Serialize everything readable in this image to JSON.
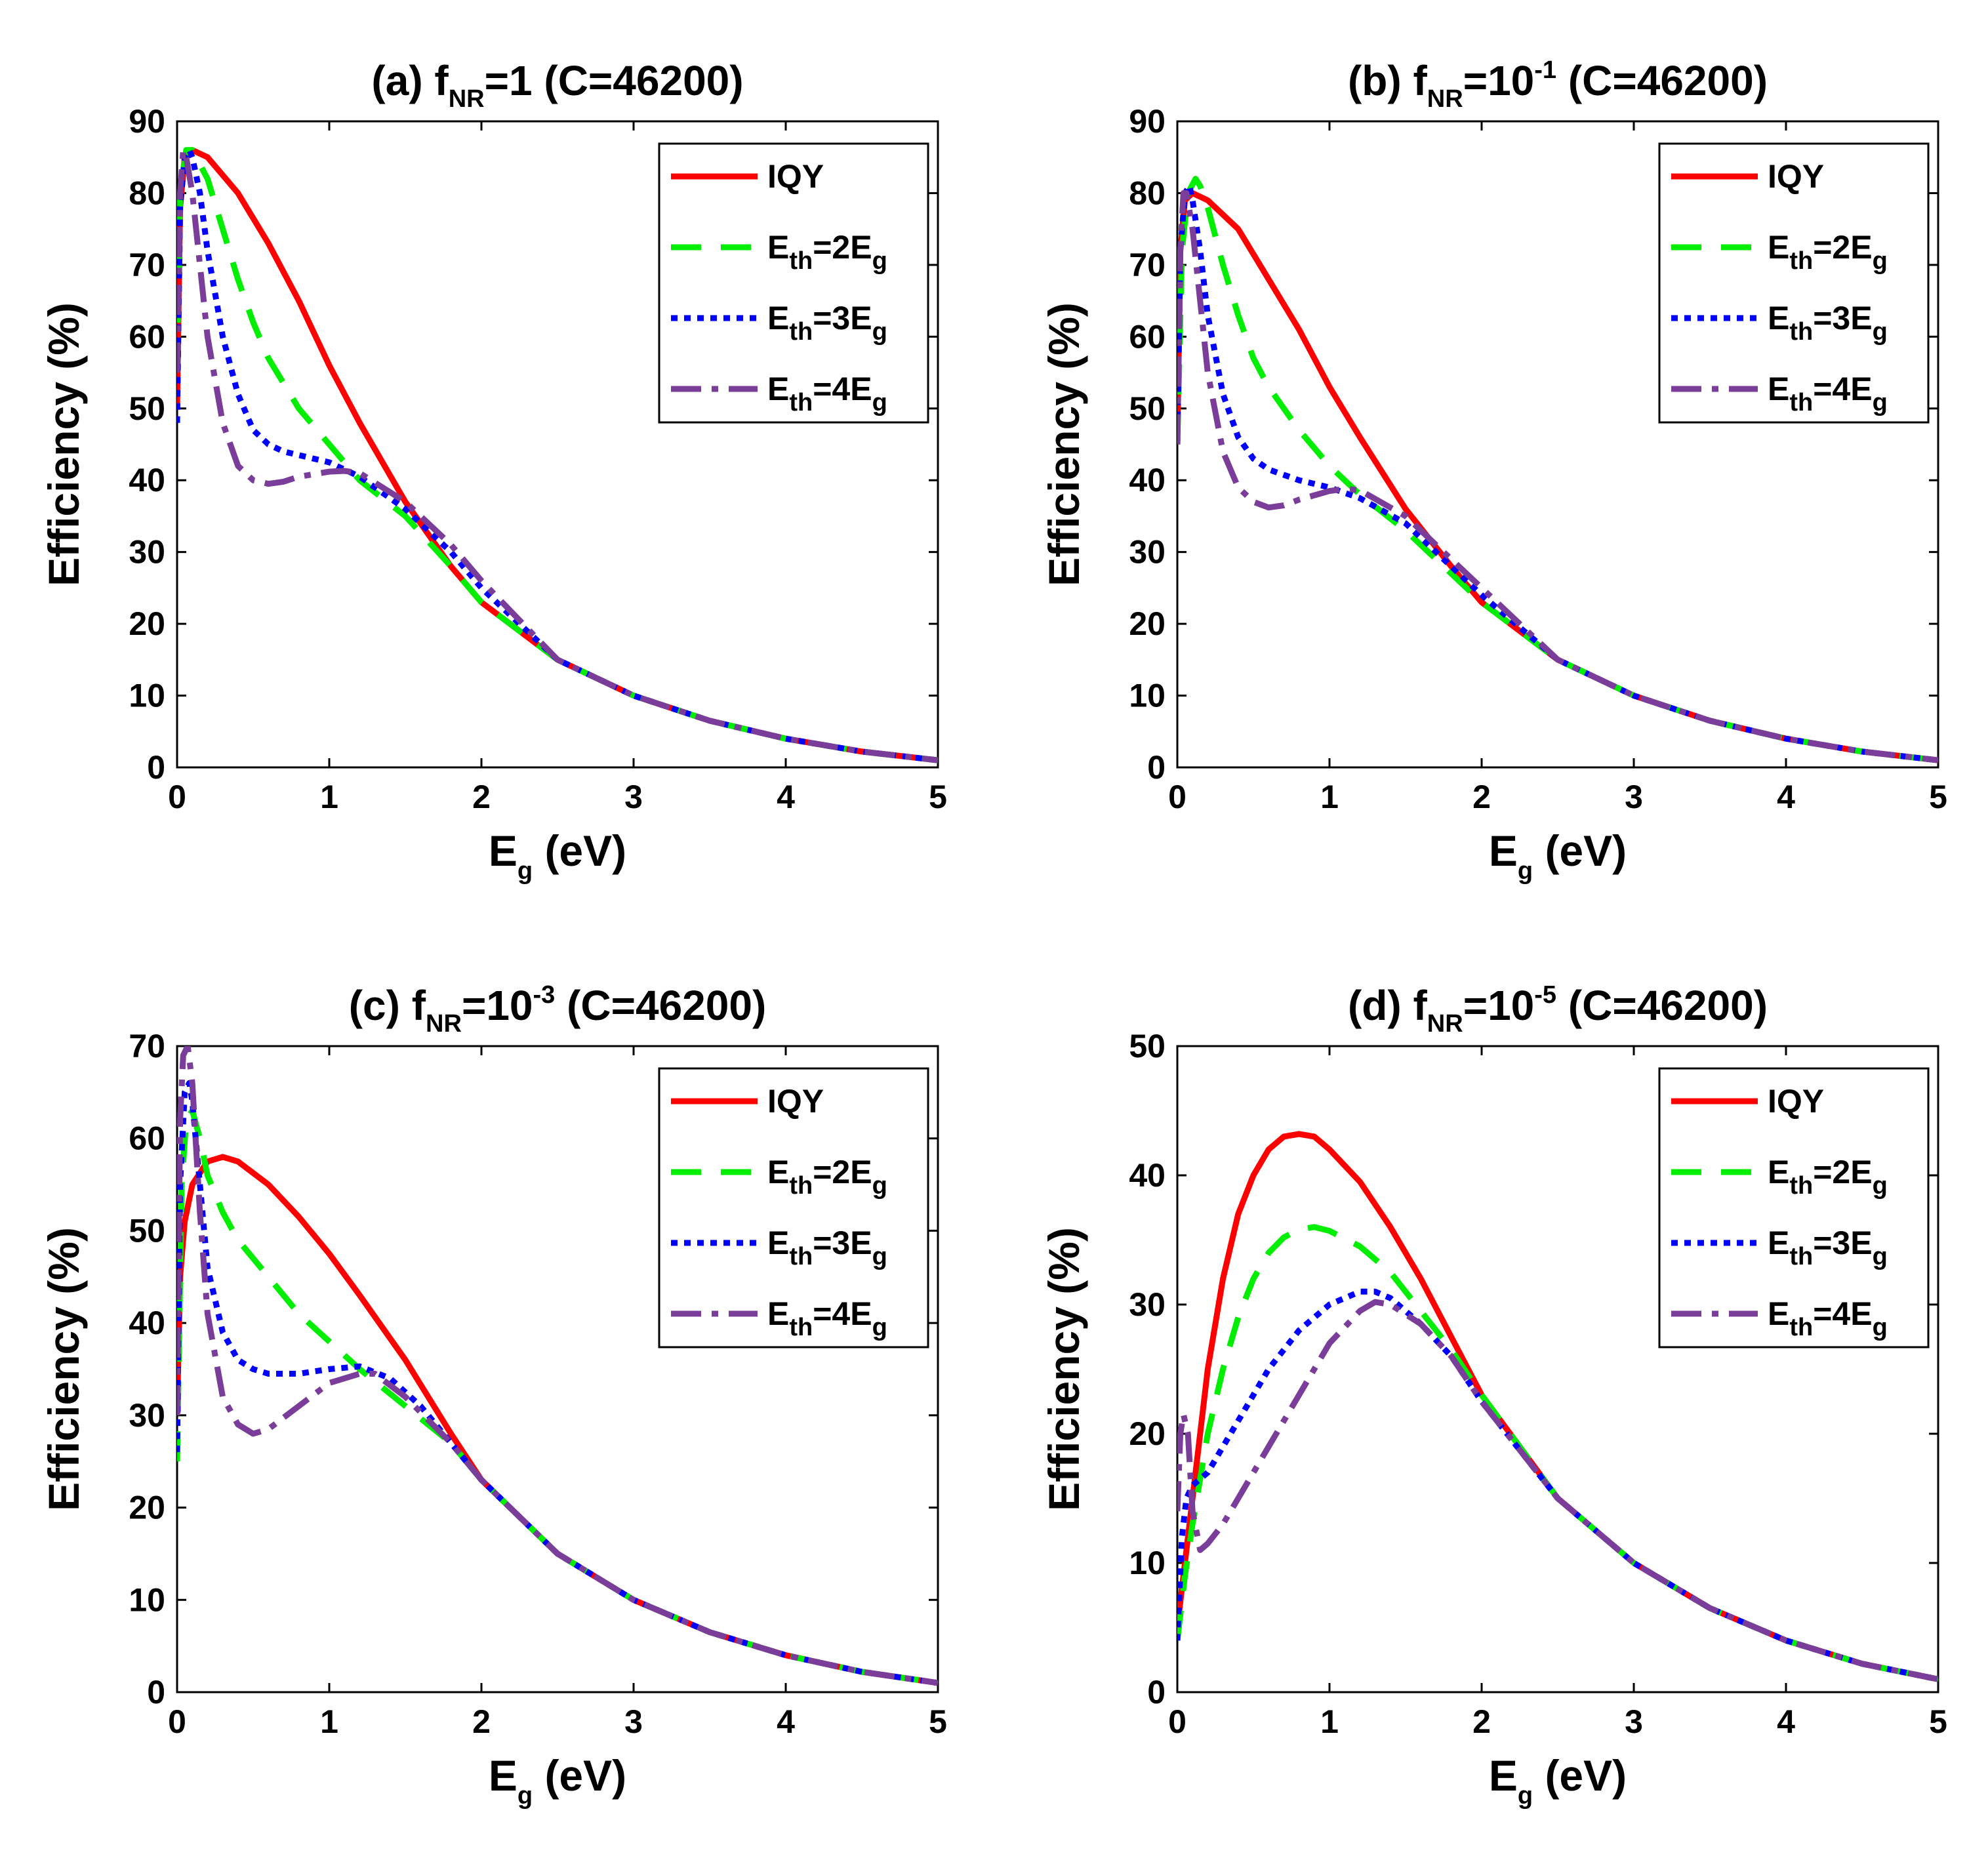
{
  "figure": {
    "colors": {
      "IQY": "#ff0000",
      "Eth2": "#00ee00",
      "Eth3": "#0000ff",
      "Eth4": "#7a3d9a"
    },
    "legend": [
      {
        "key": "IQY",
        "label": "IQY"
      },
      {
        "key": "Eth2",
        "label_main": "E",
        "label_sub": "th",
        "label_mid": "=2E",
        "label_sub2": "g"
      },
      {
        "key": "Eth3",
        "label_main": "E",
        "label_sub": "th",
        "label_mid": "=3E",
        "label_sub2": "g"
      },
      {
        "key": "Eth4",
        "label_main": "E",
        "label_sub": "th",
        "label_mid": "=4E",
        "label_sub2": "g"
      }
    ]
  },
  "chart_data": [
    {
      "type": "line",
      "panel": "a",
      "title_pre": "(a) f",
      "title_sub": "NR",
      "title_sup": "",
      "title_post": "=1 (C=46200)",
      "xlabel_main": "E",
      "xlabel_sub": "g",
      "xlabel_post": " (eV)",
      "ylabel": "Efficiency (%)",
      "xlim": [
        0,
        5
      ],
      "ylim": [
        0,
        90
      ],
      "xticks": [
        0,
        1,
        2,
        3,
        4,
        5
      ],
      "yticks": [
        0,
        10,
        20,
        30,
        40,
        50,
        60,
        70,
        80,
        90
      ],
      "series": [
        {
          "name": "IQY",
          "key": "IQY",
          "x": [
            0,
            0.02,
            0.05,
            0.1,
            0.2,
            0.4,
            0.6,
            0.8,
            1.0,
            1.2,
            1.5,
            1.8,
            2.0,
            2.5,
            3.0,
            3.5,
            4.0,
            4.5,
            5.0
          ],
          "y": [
            50,
            78,
            85,
            86,
            85,
            80,
            73,
            65,
            56,
            48,
            37,
            28,
            23,
            15,
            10,
            6.5,
            4,
            2.2,
            1
          ]
        },
        {
          "name": "E_th=2E_g",
          "key": "Eth2",
          "x": [
            0,
            0.02,
            0.06,
            0.1,
            0.15,
            0.2,
            0.3,
            0.4,
            0.5,
            0.6,
            0.8,
            1.0,
            1.2,
            1.5,
            1.8,
            2.0,
            2.5,
            3.0,
            3.5,
            4.0,
            4.5,
            5.0
          ],
          "y": [
            55,
            80,
            86,
            86,
            84,
            82,
            75,
            68,
            62,
            57,
            50,
            45,
            40,
            35,
            28,
            23,
            15,
            10,
            6.5,
            4,
            2.2,
            1
          ]
        },
        {
          "name": "E_th=3E_g",
          "key": "Eth3",
          "x": [
            0,
            0.02,
            0.05,
            0.08,
            0.1,
            0.15,
            0.2,
            0.3,
            0.4,
            0.5,
            0.6,
            0.7,
            0.8,
            1.0,
            1.2,
            1.5,
            1.8,
            2.0,
            2.5,
            3.0,
            3.5,
            4.0,
            4.5,
            5.0
          ],
          "y": [
            48,
            78,
            85,
            86,
            85,
            80,
            72,
            60,
            52,
            47,
            45,
            44,
            43.5,
            42.5,
            40.5,
            36,
            30,
            25,
            15,
            10,
            6.5,
            4,
            2.2,
            1
          ]
        },
        {
          "name": "E_th=4E_g",
          "key": "Eth4",
          "x": [
            0,
            0.02,
            0.04,
            0.06,
            0.1,
            0.15,
            0.2,
            0.3,
            0.4,
            0.5,
            0.6,
            0.7,
            0.8,
            1.0,
            1.1,
            1.2,
            1.5,
            1.8,
            2.0,
            2.5,
            3.0,
            3.5,
            4.0,
            4.5,
            5.0
          ],
          "y": [
            55,
            80,
            86,
            85,
            80,
            70,
            60,
            48,
            42,
            40,
            39.5,
            39.8,
            40.5,
            41.2,
            41.3,
            41,
            37,
            31,
            26,
            15,
            10,
            6.5,
            4,
            2.2,
            1
          ]
        }
      ]
    },
    {
      "type": "line",
      "panel": "b",
      "title_pre": "(b) f",
      "title_sub": "NR",
      "title_sup": "-1",
      "title_post": " (C=46200)",
      "title_mid": "=10",
      "xlabel_main": "E",
      "xlabel_sub": "g",
      "xlabel_post": " (eV)",
      "ylabel": "Efficiency (%)",
      "xlim": [
        0,
        5
      ],
      "ylim": [
        0,
        90
      ],
      "xticks": [
        0,
        1,
        2,
        3,
        4,
        5
      ],
      "yticks": [
        0,
        10,
        20,
        30,
        40,
        50,
        60,
        70,
        80,
        90
      ],
      "series": [
        {
          "name": "IQY",
          "key": "IQY",
          "x": [
            0,
            0.02,
            0.05,
            0.1,
            0.2,
            0.4,
            0.6,
            0.8,
            1.0,
            1.2,
            1.5,
            1.8,
            2.0,
            2.5,
            3.0,
            3.5,
            4.0,
            4.5,
            5.0
          ],
          "y": [
            45,
            72,
            79,
            80,
            79,
            75,
            68,
            61,
            53,
            46,
            36,
            28,
            23,
            15,
            10,
            6.5,
            4,
            2.2,
            1
          ]
        },
        {
          "name": "E_th=2E_g",
          "key": "Eth2",
          "x": [
            0,
            0.03,
            0.07,
            0.12,
            0.15,
            0.2,
            0.3,
            0.4,
            0.5,
            0.6,
            0.8,
            1.0,
            1.2,
            1.5,
            1.8,
            2.0,
            2.5,
            3.0,
            3.5,
            4.0,
            4.5,
            5.0
          ],
          "y": [
            45,
            72,
            80,
            82,
            81,
            78,
            70,
            63,
            57,
            53,
            47,
            42,
            38,
            33,
            27,
            23,
            15,
            10,
            6.5,
            4,
            2.2,
            1
          ]
        },
        {
          "name": "E_th=3E_g",
          "key": "Eth3",
          "x": [
            0,
            0.02,
            0.05,
            0.08,
            0.1,
            0.15,
            0.2,
            0.3,
            0.4,
            0.5,
            0.6,
            0.8,
            1.0,
            1.2,
            1.5,
            1.8,
            2.0,
            2.5,
            3.0,
            3.5,
            4.0,
            4.5,
            5.0
          ],
          "y": [
            45,
            72,
            80,
            81,
            79,
            72,
            63,
            52,
            46,
            43,
            41.5,
            40,
            39,
            37.5,
            34,
            28,
            24,
            15,
            10,
            6.5,
            4,
            2.2,
            1
          ]
        },
        {
          "name": "E_th=4E_g",
          "key": "Eth4",
          "x": [
            0,
            0.02,
            0.04,
            0.06,
            0.1,
            0.15,
            0.2,
            0.3,
            0.4,
            0.5,
            0.6,
            0.7,
            0.8,
            1.0,
            1.1,
            1.2,
            1.5,
            1.8,
            2.0,
            2.5,
            3.0,
            3.5,
            4.0,
            4.5,
            5.0
          ],
          "y": [
            45,
            72,
            80,
            80,
            75,
            65,
            55,
            44,
            39,
            37,
            36.2,
            36.5,
            37.3,
            38.5,
            38.8,
            38.6,
            35,
            29,
            25,
            15,
            10,
            6.5,
            4,
            2.2,
            1
          ]
        }
      ]
    },
    {
      "type": "line",
      "panel": "c",
      "title_pre": "(c) f",
      "title_sub": "NR",
      "title_sup": "-3",
      "title_post": " (C=46200)",
      "title_mid": "=10",
      "xlabel_main": "E",
      "xlabel_sub": "g",
      "xlabel_post": " (eV)",
      "ylabel": "Efficiency (%)",
      "xlim": [
        0,
        5
      ],
      "ylim": [
        0,
        70
      ],
      "xticks": [
        0,
        1,
        2,
        3,
        4,
        5
      ],
      "yticks": [
        0,
        10,
        20,
        30,
        40,
        50,
        60,
        70
      ],
      "series": [
        {
          "name": "IQY",
          "key": "IQY",
          "x": [
            0,
            0.02,
            0.05,
            0.1,
            0.2,
            0.3,
            0.4,
            0.6,
            0.8,
            1.0,
            1.2,
            1.5,
            1.8,
            2.0,
            2.5,
            3.0,
            3.5,
            4.0,
            4.5,
            5.0
          ],
          "y": [
            30,
            45,
            51,
            55,
            57.5,
            58,
            57.5,
            55,
            51.5,
            47.5,
            43,
            36,
            28,
            23,
            15,
            10,
            6.5,
            4,
            2.2,
            1
          ]
        },
        {
          "name": "E_th=2E_g",
          "key": "Eth2",
          "x": [
            0,
            0.03,
            0.06,
            0.1,
            0.15,
            0.2,
            0.3,
            0.4,
            0.6,
            0.8,
            1.0,
            1.2,
            1.5,
            1.8,
            2.0,
            2.5,
            3.0,
            3.5,
            4.0,
            4.5,
            5.0
          ],
          "y": [
            25,
            55,
            62,
            63,
            60,
            56,
            52,
            49,
            45,
            41,
            38,
            35,
            31,
            27,
            23,
            15,
            10,
            6.5,
            4,
            2.2,
            1
          ]
        },
        {
          "name": "E_th=3E_g",
          "key": "Eth3",
          "x": [
            0,
            0.02,
            0.05,
            0.08,
            0.1,
            0.15,
            0.2,
            0.3,
            0.4,
            0.5,
            0.6,
            0.8,
            1.0,
            1.2,
            1.4,
            1.6,
            1.8,
            2.0,
            2.5,
            3.0,
            3.5,
            4.0,
            4.5,
            5.0
          ],
          "y": [
            26,
            55,
            65,
            66,
            64,
            55,
            46,
            39,
            36,
            35,
            34.5,
            34.5,
            35,
            35.3,
            34,
            31,
            27,
            23,
            15,
            10,
            6.5,
            4,
            2.2,
            1
          ]
        },
        {
          "name": "E_th=4E_g",
          "key": "Eth4",
          "x": [
            0,
            0.02,
            0.04,
            0.07,
            0.1,
            0.15,
            0.2,
            0.3,
            0.4,
            0.5,
            0.6,
            0.8,
            1.0,
            1.2,
            1.3,
            1.5,
            1.8,
            2.0,
            2.5,
            3.0,
            3.5,
            4.0,
            4.5,
            5.0
          ],
          "y": [
            30,
            62,
            69,
            70,
            66,
            52,
            41,
            32,
            29,
            28,
            28.5,
            31,
            33.5,
            34.5,
            34.5,
            32,
            27,
            23,
            15,
            10,
            6.5,
            4,
            2.2,
            1
          ]
        }
      ]
    },
    {
      "type": "line",
      "panel": "d",
      "title_pre": "(d) f",
      "title_sub": "NR",
      "title_sup": "-5",
      "title_post": " (C=46200)",
      "title_mid": "=10",
      "xlabel_main": "E",
      "xlabel_sub": "g",
      "xlabel_post": " (eV)",
      "ylabel": "Efficiency (%)",
      "xlim": [
        0,
        5
      ],
      "ylim": [
        0,
        50
      ],
      "xticks": [
        0,
        1,
        2,
        3,
        4,
        5
      ],
      "yticks": [
        0,
        10,
        20,
        30,
        40,
        50
      ],
      "series": [
        {
          "name": "IQY",
          "key": "IQY",
          "x": [
            0,
            0.05,
            0.1,
            0.2,
            0.3,
            0.4,
            0.5,
            0.6,
            0.7,
            0.8,
            0.9,
            1.0,
            1.2,
            1.4,
            1.6,
            1.8,
            2.0,
            2.5,
            3.0,
            3.5,
            4.0,
            4.5,
            5.0
          ],
          "y": [
            5,
            10,
            15,
            25,
            32,
            37,
            40,
            42,
            43,
            43.2,
            43,
            42,
            39.5,
            36,
            32,
            27.5,
            23,
            15,
            10,
            6.5,
            4,
            2.2,
            1
          ]
        },
        {
          "name": "E_th=2E_g",
          "key": "Eth2",
          "x": [
            0,
            0.05,
            0.1,
            0.2,
            0.3,
            0.4,
            0.5,
            0.6,
            0.7,
            0.8,
            0.9,
            1.0,
            1.2,
            1.4,
            1.6,
            1.8,
            2.0,
            2.5,
            3.0,
            3.5,
            4.0,
            4.5,
            5.0
          ],
          "y": [
            4,
            9,
            13,
            20,
            25,
            29,
            32,
            34,
            35.2,
            35.8,
            36,
            35.7,
            34.5,
            32.5,
            29.5,
            26.5,
            23,
            15,
            10,
            6.5,
            4,
            2.2,
            1
          ]
        },
        {
          "name": "E_th=3E_g",
          "key": "Eth3",
          "x": [
            0,
            0.03,
            0.06,
            0.1,
            0.2,
            0.3,
            0.4,
            0.5,
            0.6,
            0.8,
            1.0,
            1.2,
            1.3,
            1.4,
            1.6,
            1.8,
            2.0,
            2.5,
            3.0,
            3.5,
            4.0,
            4.5,
            5.0
          ],
          "y": [
            4,
            12,
            15,
            16,
            17,
            19,
            21,
            23,
            25,
            28,
            30,
            31,
            31,
            30.5,
            28.5,
            26,
            22.5,
            15,
            10,
            6.5,
            4,
            2.2,
            1
          ]
        },
        {
          "name": "E_th=4E_g",
          "key": "Eth4",
          "x": [
            0,
            0.02,
            0.04,
            0.07,
            0.1,
            0.15,
            0.2,
            0.3,
            0.4,
            0.5,
            0.6,
            0.8,
            1.0,
            1.2,
            1.3,
            1.4,
            1.6,
            1.8,
            2.0,
            2.5,
            3.0,
            3.5,
            4.0,
            4.5,
            5.0
          ],
          "y": [
            14,
            20,
            21.5,
            20,
            14,
            11,
            11.5,
            13,
            15,
            17,
            19,
            23,
            27,
            29.5,
            30.2,
            30,
            28.5,
            26,
            22.5,
            15,
            10,
            6.5,
            4,
            2.2,
            1
          ]
        }
      ]
    }
  ]
}
